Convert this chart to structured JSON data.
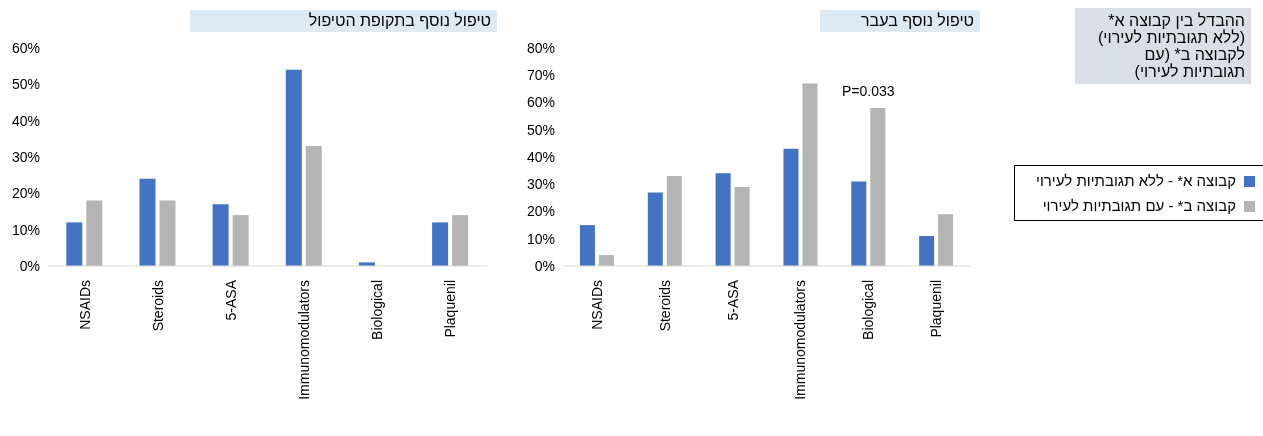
{
  "chart_data": [
    {
      "type": "bar",
      "title": "טיפול נוסף בתקופת הטיפול",
      "categories": [
        "NSAIDs",
        "Steroids",
        "5-ASA",
        "Immunomodulators",
        "Biological",
        "Plaquenil"
      ],
      "series": [
        {
          "color": "#4472c4",
          "values": [
            12,
            24,
            17,
            54,
            1,
            12
          ]
        },
        {
          "color": "#b4b4b4",
          "values": [
            18,
            18,
            14,
            33,
            0,
            14
          ]
        }
      ],
      "ylim": [
        0,
        60
      ],
      "yticks": [
        {
          "value": 0,
          "label": "0%"
        },
        {
          "value": 10,
          "label": "10%"
        },
        {
          "value": 20,
          "label": "20%"
        },
        {
          "value": 30,
          "label": "30%"
        },
        {
          "value": 40,
          "label": "40%"
        },
        {
          "value": 50,
          "label": "50%"
        },
        {
          "value": 60,
          "label": "60%"
        }
      ]
    },
    {
      "type": "bar",
      "title": "טיפול נוסף בעבר",
      "categories": [
        "NSAIDs",
        "Steroids",
        "5-ASA",
        "Immunomodulators",
        "Biological",
        "Plaquenil"
      ],
      "series": [
        {
          "name": "קבוצה א* - ללא תגובתיות לעירוי",
          "color": "#4472c4",
          "values": [
            15,
            27,
            34,
            43,
            31,
            11
          ]
        },
        {
          "name": "קבוצה ב* - עם תגובתיות לעירוי",
          "color": "#b4b4b4",
          "values": [
            4,
            33,
            29,
            67,
            58,
            19
          ]
        }
      ],
      "ylim": [
        0,
        80
      ],
      "yticks": [
        {
          "value": 0,
          "label": "0%"
        },
        {
          "value": 10,
          "label": "10%"
        },
        {
          "value": 20,
          "label": "20%"
        },
        {
          "value": 30,
          "label": "30%"
        },
        {
          "value": 40,
          "label": "40%"
        },
        {
          "value": 50,
          "label": "50%"
        },
        {
          "value": 60,
          "label": "60%"
        },
        {
          "value": 70,
          "label": "70%"
        },
        {
          "value": 80,
          "label": "80%"
        }
      ],
      "annotations": [
        {
          "text": "P=0.033",
          "x": "Biological",
          "y": 58
        }
      ],
      "legend": "right"
    },
    {
      "type": "other",
      "title": "ההבדל בין קבוצה א* (ללא תגובתיות לעירוי) לקבוצה ב* (עם תגובתיות לעירוי)"
    }
  ]
}
